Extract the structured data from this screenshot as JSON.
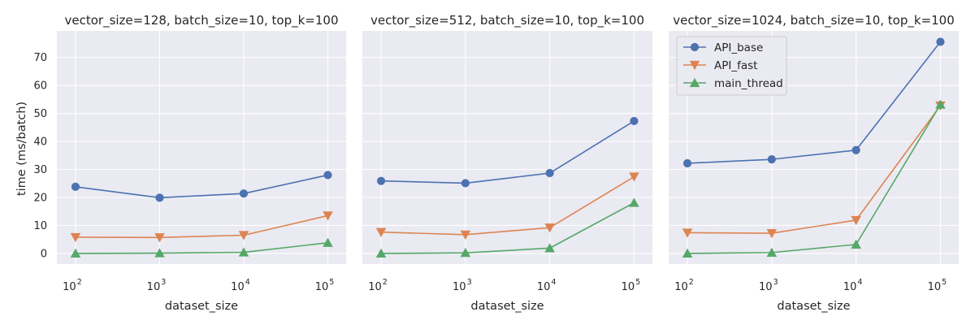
{
  "colors": {
    "API_base": "#4c72b0",
    "API_fast": "#dd8452",
    "main_thread": "#55a868",
    "panel_background": "#eaeaf2",
    "grid": "#ffffff",
    "text": "#262626"
  },
  "chart_data": [
    {
      "type": "line",
      "title": "vector_size=128, batch_size=10, top_k=100",
      "xlabel": "dataset_size",
      "ylabel": "time (ms/batch)",
      "x_scale": "log",
      "x": [
        100,
        1000,
        10000,
        100000
      ],
      "x_ticks": [
        {
          "base": "10",
          "exp": "2"
        },
        {
          "base": "10",
          "exp": "3"
        },
        {
          "base": "10",
          "exp": "4"
        },
        {
          "base": "10",
          "exp": "5"
        }
      ],
      "y_ticks": [
        "0",
        "10",
        "20",
        "30",
        "40",
        "50",
        "60",
        "70"
      ],
      "ylim": [
        -3.8,
        79.5
      ],
      "grid": true,
      "series": [
        {
          "name": "API_base",
          "marker": "circle",
          "values": [
            23.8,
            19.9,
            21.4,
            28.0
          ]
        },
        {
          "name": "API_fast",
          "marker": "triangle-down",
          "values": [
            5.8,
            5.7,
            6.5,
            13.5
          ]
        },
        {
          "name": "main_thread",
          "marker": "triangle-up",
          "values": [
            0.0,
            0.1,
            0.4,
            3.8
          ]
        }
      ]
    },
    {
      "type": "line",
      "title": "vector_size=512, batch_size=10, top_k=100",
      "xlabel": "dataset_size",
      "ylabel": "",
      "x_scale": "log",
      "x": [
        100,
        1000,
        10000,
        100000
      ],
      "x_ticks": [
        {
          "base": "10",
          "exp": "2"
        },
        {
          "base": "10",
          "exp": "3"
        },
        {
          "base": "10",
          "exp": "4"
        },
        {
          "base": "10",
          "exp": "5"
        }
      ],
      "y_ticks": [],
      "ylim": [
        -3.8,
        79.5
      ],
      "grid": true,
      "series": [
        {
          "name": "API_base",
          "marker": "circle",
          "values": [
            25.9,
            25.1,
            28.7,
            47.3
          ]
        },
        {
          "name": "API_fast",
          "marker": "triangle-down",
          "values": [
            7.6,
            6.7,
            9.2,
            27.4
          ]
        },
        {
          "name": "main_thread",
          "marker": "triangle-up",
          "values": [
            0.0,
            0.2,
            1.9,
            18.1
          ]
        }
      ]
    },
    {
      "type": "line",
      "title": "vector_size=1024, batch_size=10, top_k=100",
      "xlabel": "dataset_size",
      "ylabel": "",
      "x_scale": "log",
      "x": [
        100,
        1000,
        10000,
        100000
      ],
      "x_ticks": [
        {
          "base": "10",
          "exp": "2"
        },
        {
          "base": "10",
          "exp": "3"
        },
        {
          "base": "10",
          "exp": "4"
        },
        {
          "base": "10",
          "exp": "5"
        }
      ],
      "y_ticks": [],
      "ylim": [
        -3.8,
        79.5
      ],
      "grid": true,
      "legend": {
        "location": "upper-left",
        "entries": [
          "API_base",
          "API_fast",
          "main_thread"
        ]
      },
      "series": [
        {
          "name": "API_base",
          "marker": "circle",
          "values": [
            32.2,
            33.6,
            36.9,
            75.6
          ]
        },
        {
          "name": "API_fast",
          "marker": "triangle-down",
          "values": [
            7.4,
            7.2,
            11.9,
            52.8
          ]
        },
        {
          "name": "main_thread",
          "marker": "triangle-up",
          "values": [
            0.0,
            0.3,
            3.2,
            53.2
          ]
        }
      ]
    }
  ]
}
